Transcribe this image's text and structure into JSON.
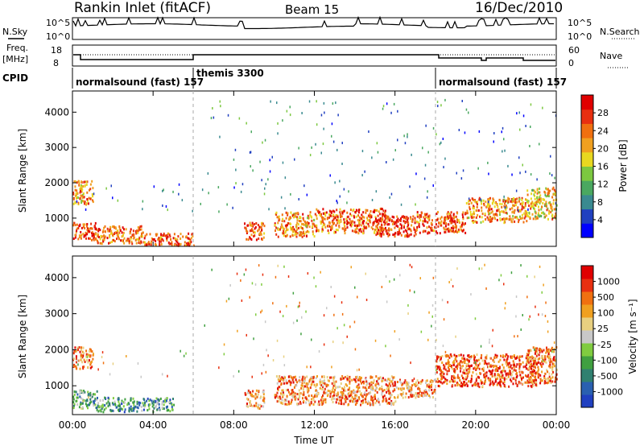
{
  "header": {
    "station": "Rankin Inlet (fitACF)",
    "beam": "Beam 15",
    "date": "16/Dec/2010"
  },
  "panels": {
    "nsky_label": "N.Sky",
    "nsky_ticks": [
      "10^5",
      "10^0"
    ],
    "nsearch_label": "N.Search",
    "nsearch_ticks": [
      "10^5",
      "10^0"
    ],
    "freq_label": "Freq.",
    "freq_unit": "[MHz]",
    "freq_ticks": [
      "18",
      "8"
    ],
    "nave_label": "Nave",
    "nave_ticks": [
      "60",
      "0"
    ],
    "cpid_label": "CPID",
    "cpid_segments": [
      {
        "text": "normalsound (fast) 157",
        "start_hour": 0
      },
      {
        "text": "themis 3300",
        "start_hour": 6
      },
      {
        "text": "normalsound (fast) 157",
        "start_hour": 18
      }
    ]
  },
  "chart_data": [
    {
      "type": "heatmap",
      "name": "power-panel",
      "ylabel": "Slant Range [km]",
      "yticks": [
        "1000",
        "2000",
        "3000",
        "4000"
      ],
      "ylim": [
        200,
        4600
      ],
      "xlim": [
        0,
        24
      ],
      "colorbar": {
        "label": "Power [dB]",
        "ticks": [
          "4",
          "8",
          "12",
          "16",
          "20",
          "24",
          "28"
        ],
        "colors": [
          "#0000ff",
          "#2040c0",
          "#3a8a90",
          "#4aa860",
          "#7cc840",
          "#e8d820",
          "#f0a020",
          "#f07010",
          "#e83010",
          "#e00000"
        ]
      },
      "bands": [
        {
          "t0": 0.0,
          "t1": 1.2,
          "r0": 400,
          "r1": 900,
          "level": 0.85
        },
        {
          "t0": 0.0,
          "t1": 1.0,
          "r0": 1400,
          "r1": 2100,
          "level": 0.7
        },
        {
          "t0": 1.0,
          "t1": 3.5,
          "r0": 300,
          "r1": 800,
          "level": 0.75
        },
        {
          "t0": 3.5,
          "t1": 6.0,
          "r0": 250,
          "r1": 600,
          "level": 0.8
        },
        {
          "t0": 8.5,
          "t1": 9.5,
          "r0": 400,
          "r1": 900,
          "level": 0.8
        },
        {
          "t0": 10.0,
          "t1": 12.0,
          "r0": 500,
          "r1": 1200,
          "level": 0.7
        },
        {
          "t0": 12.0,
          "t1": 15.5,
          "r0": 600,
          "r1": 1300,
          "level": 0.75
        },
        {
          "t0": 15.0,
          "t1": 17.0,
          "r0": 500,
          "r1": 1100,
          "level": 0.85
        },
        {
          "t0": 17.0,
          "t1": 19.5,
          "r0": 600,
          "r1": 1200,
          "level": 0.8
        },
        {
          "t0": 19.5,
          "t1": 22.5,
          "r0": 900,
          "r1": 1600,
          "level": 0.7
        },
        {
          "t0": 22.5,
          "t1": 24.0,
          "r0": 1000,
          "r1": 1900,
          "level": 0.6
        }
      ]
    },
    {
      "type": "heatmap",
      "name": "velocity-panel",
      "ylabel": "Slant Range [km]",
      "yticks": [
        "1000",
        "2000",
        "3000",
        "4000"
      ],
      "ylim": [
        200,
        4600
      ],
      "xlim": [
        0,
        24
      ],
      "xlabel": "Time UT",
      "xticks": [
        "00:00",
        "04:00",
        "08:00",
        "12:00",
        "16:00",
        "20:00",
        "00:00"
      ],
      "colorbar": {
        "label": "Velocity [m s⁻¹]",
        "ticks": [
          "1000",
          "500",
          "100",
          "25",
          "-25",
          "-100",
          "-500",
          "-1000"
        ],
        "colors": [
          "#2040c0",
          "#2a60b0",
          "#308070",
          "#40a040",
          "#80cc40",
          "#c8c8c8",
          "#e8d080",
          "#f0a020",
          "#f07010",
          "#e83010",
          "#e00000"
        ]
      },
      "bands": [
        {
          "t0": 0.0,
          "t1": 1.2,
          "r0": 400,
          "r1": 900,
          "level": 0.35
        },
        {
          "t0": 0.0,
          "t1": 1.0,
          "r0": 1500,
          "r1": 2100,
          "level": 0.75
        },
        {
          "t0": 1.0,
          "t1": 5.0,
          "r0": 300,
          "r1": 700,
          "level": 0.3
        },
        {
          "t0": 8.5,
          "t1": 9.5,
          "r0": 400,
          "r1": 900,
          "level": 0.72
        },
        {
          "t0": 10.0,
          "t1": 16.0,
          "r0": 500,
          "r1": 1300,
          "level": 0.72
        },
        {
          "t0": 16.0,
          "t1": 18.0,
          "r0": 700,
          "r1": 1200,
          "level": 0.7
        },
        {
          "t0": 18.0,
          "t1": 23.0,
          "r0": 1000,
          "r1": 1900,
          "level": 0.82
        },
        {
          "t0": 22.5,
          "t1": 24.0,
          "r0": 1100,
          "r1": 2100,
          "level": 0.78
        }
      ]
    }
  ]
}
